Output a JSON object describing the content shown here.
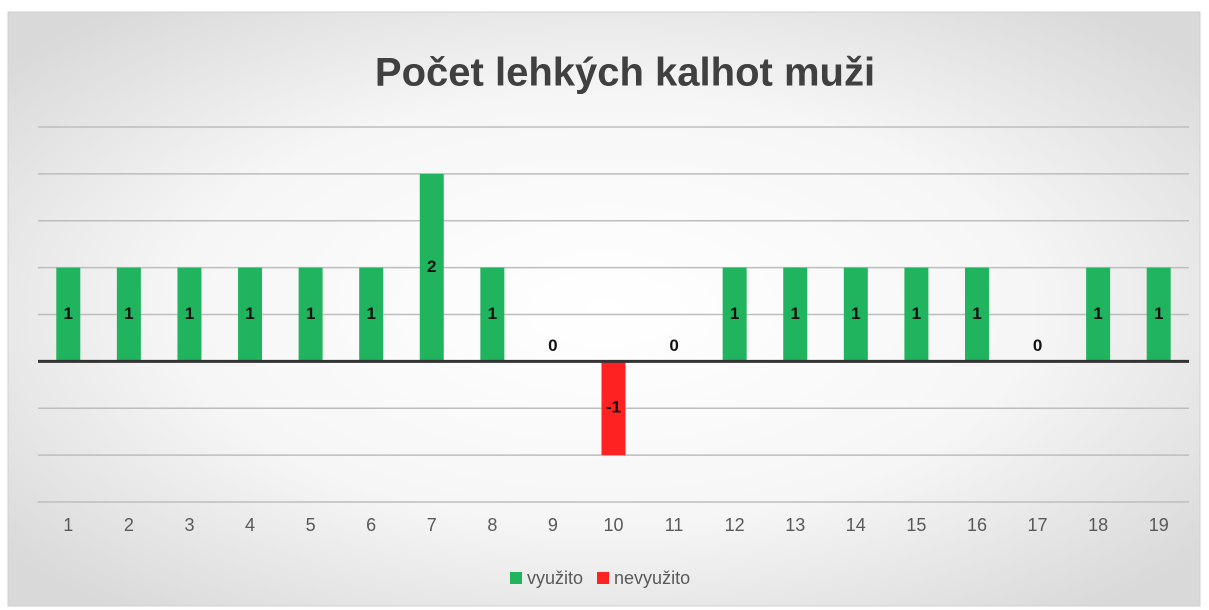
{
  "chart_data": {
    "type": "bar",
    "title": "Počet lehkých kalhot muži",
    "categories": [
      "1",
      "2",
      "3",
      "4",
      "5",
      "6",
      "7",
      "8",
      "9",
      "10",
      "11",
      "12",
      "13",
      "14",
      "15",
      "16",
      "17",
      "18",
      "19"
    ],
    "series": [
      {
        "name": "využito",
        "color": "#21b45e",
        "values": [
          1,
          1,
          1,
          1,
          1,
          1,
          2,
          1,
          0,
          null,
          0,
          1,
          1,
          1,
          1,
          1,
          0,
          1,
          1
        ]
      },
      {
        "name": "nevyužito",
        "color": "#ff2222",
        "values": [
          null,
          null,
          null,
          null,
          null,
          null,
          null,
          null,
          null,
          -1,
          null,
          null,
          null,
          null,
          null,
          null,
          null,
          null,
          null
        ]
      }
    ],
    "ylim": [
      -1.5,
      2.5
    ],
    "yticks": [
      -1.5,
      -1,
      -0.5,
      0,
      0.5,
      1,
      1.5,
      2,
      2.5
    ],
    "grid": true,
    "legend": "bottom"
  }
}
